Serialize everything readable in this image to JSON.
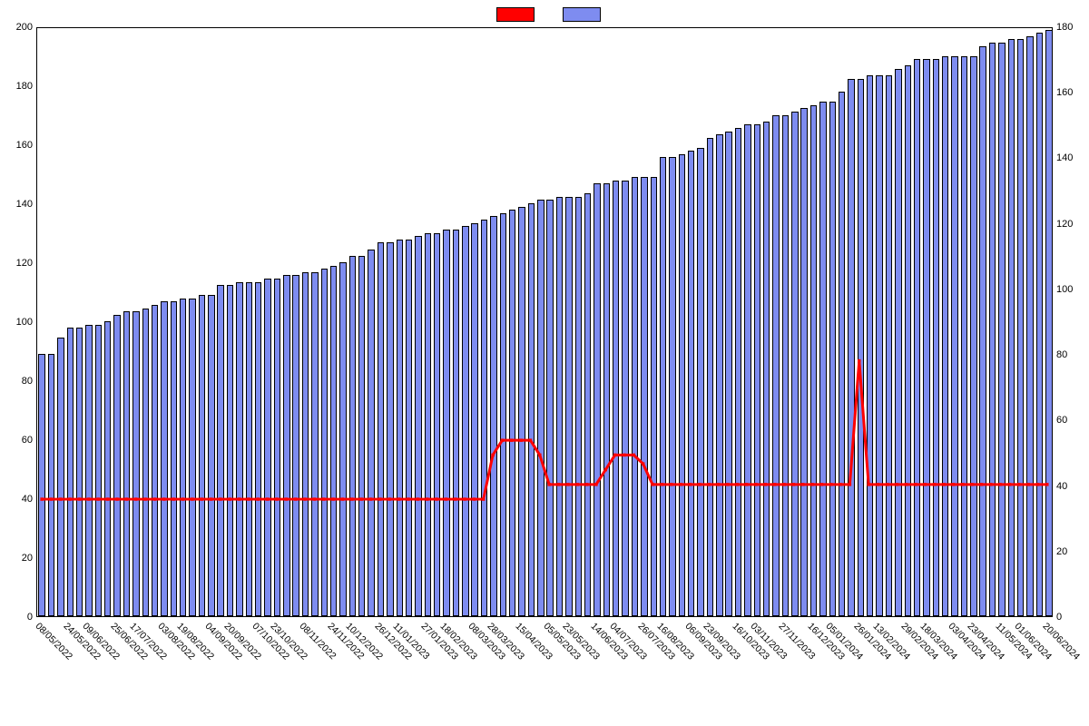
{
  "chart": {
    "type": "bar+line",
    "background_color": "#ffffff",
    "plot_border_color": "#000000",
    "font_family": "Arial",
    "tick_fontsize": 11,
    "legend": {
      "series": [
        {
          "label": "",
          "color": "#ff0000",
          "type": "line"
        },
        {
          "label": "",
          "color": "#7e8cf0",
          "type": "bar"
        }
      ]
    },
    "y_left": {
      "min": 0,
      "max": 200,
      "step": 20
    },
    "y_right": {
      "min": 0,
      "max": 180,
      "step": 20
    },
    "x_labels_shown": [
      "08/05/2022",
      "24/05/2022",
      "09/06/2022",
      "25/06/2022",
      "17/07/2022",
      "03/08/2022",
      "19/08/2022",
      "04/09/2022",
      "20/09/2022",
      "07/10/2022",
      "23/10/2022",
      "08/11/2022",
      "24/11/2022",
      "10/12/2022",
      "26/12/2022",
      "11/01/2023",
      "27/01/2023",
      "18/02/2023",
      "08/03/2023",
      "28/03/2023",
      "15/04/2023",
      "05/05/2023",
      "23/05/2023",
      "14/06/2023",
      "04/07/2023",
      "26/07/2023",
      "16/08/2023",
      "06/09/2023",
      "23/09/2023",
      "16/10/2023",
      "03/11/2023",
      "27/11/2023",
      "16/12/2023",
      "05/01/2024",
      "26/01/2024",
      "13/02/2024",
      "29/02/2024",
      "18/03/2024",
      "03/04/2024",
      "23/04/2024",
      "11/05/2024",
      "01/06/2024",
      "20/06/2024"
    ],
    "bar_series": {
      "color": "#7e8cf0",
      "border_color": "#000000",
      "axis": "right",
      "values": [
        80,
        80,
        85,
        88,
        88,
        89,
        89,
        90,
        92,
        93,
        93,
        94,
        95,
        96,
        96,
        97,
        97,
        98,
        98,
        101,
        101,
        102,
        102,
        102,
        103,
        103,
        104,
        104,
        105,
        105,
        106,
        107,
        108,
        110,
        110,
        112,
        114,
        114,
        115,
        115,
        116,
        117,
        117,
        118,
        118,
        119,
        120,
        121,
        122,
        123,
        124,
        125,
        126,
        127,
        127,
        128,
        128,
        128,
        129,
        132,
        132,
        133,
        133,
        134,
        134,
        134,
        140,
        140,
        141,
        142,
        143,
        146,
        147,
        148,
        149,
        150,
        150,
        151,
        153,
        153,
        154,
        155,
        156,
        157,
        157,
        160,
        164,
        164,
        165,
        165,
        165,
        167,
        168,
        170,
        170,
        170,
        171,
        171,
        171,
        171,
        174,
        175,
        175,
        176,
        176,
        177,
        178,
        179
      ]
    },
    "line_series": {
      "color": "#ff0000",
      "width": 3,
      "marker": "square",
      "marker_size": 3.5,
      "axis": "left",
      "values": [
        40,
        40,
        40,
        40,
        40,
        40,
        40,
        40,
        40,
        40,
        40,
        40,
        40,
        40,
        40,
        40,
        40,
        40,
        40,
        40,
        40,
        40,
        40,
        40,
        40,
        40,
        40,
        40,
        40,
        40,
        40,
        40,
        40,
        40,
        40,
        40,
        40,
        40,
        40,
        40,
        40,
        40,
        40,
        40,
        40,
        40,
        40,
        40,
        55,
        60,
        60,
        60,
        60,
        55,
        45,
        45,
        45,
        45,
        45,
        45,
        50,
        55,
        55,
        55,
        52,
        45,
        45,
        45,
        45,
        45,
        45,
        45,
        45,
        45,
        45,
        45,
        45,
        45,
        45,
        45,
        45,
        45,
        45,
        45,
        45,
        45,
        45,
        87,
        45,
        45,
        45,
        45,
        45,
        45,
        45,
        45,
        45,
        45,
        45,
        45,
        45,
        45,
        45,
        45,
        45,
        45,
        45,
        45
      ]
    }
  }
}
